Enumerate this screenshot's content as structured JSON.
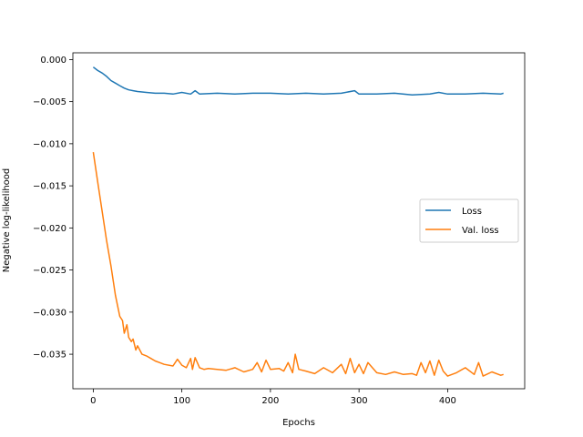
{
  "chart_data": {
    "type": "line",
    "title": "",
    "xlabel": "Epochs",
    "ylabel": "Negative log-likelihood",
    "xlim": [
      -23,
      487
    ],
    "ylim": [
      -0.0391,
      0.0008
    ],
    "xticks": [
      0,
      100,
      200,
      300,
      400
    ],
    "yticks": [
      0.0,
      -0.005,
      -0.01,
      -0.015,
      -0.02,
      -0.025,
      -0.03,
      -0.035
    ],
    "xtick_labels": [
      "0",
      "100",
      "200",
      "300",
      "400"
    ],
    "ytick_labels": [
      "0.000",
      "−0.005",
      "−0.010",
      "−0.015",
      "−0.020",
      "−0.025",
      "−0.030",
      "−0.035"
    ],
    "grid": false,
    "legend_position": "center-right",
    "series": [
      {
        "name": "Loss",
        "color": "#1f77b4",
        "x": [
          0,
          5,
          10,
          15,
          20,
          25,
          30,
          35,
          40,
          45,
          50,
          60,
          70,
          80,
          90,
          100,
          110,
          115,
          120,
          140,
          160,
          180,
          200,
          220,
          240,
          260,
          280,
          295,
          300,
          320,
          340,
          360,
          380,
          390,
          400,
          420,
          440,
          460,
          463
        ],
        "y": [
          -0.0009,
          -0.0013,
          -0.0016,
          -0.002,
          -0.0025,
          -0.0028,
          -0.0031,
          -0.0034,
          -0.0036,
          -0.0037,
          -0.0038,
          -0.0039,
          -0.004,
          -0.004,
          -0.0041,
          -0.0039,
          -0.0041,
          -0.0037,
          -0.0041,
          -0.004,
          -0.0041,
          -0.004,
          -0.004,
          -0.0041,
          -0.004,
          -0.0041,
          -0.004,
          -0.0037,
          -0.0041,
          -0.0041,
          -0.004,
          -0.0042,
          -0.0041,
          -0.0039,
          -0.0041,
          -0.0041,
          -0.004,
          -0.0041,
          -0.004
        ]
      },
      {
        "name": "Val. loss",
        "color": "#ff7f0e",
        "x": [
          0,
          5,
          10,
          15,
          20,
          25,
          30,
          33,
          35,
          38,
          40,
          43,
          45,
          48,
          50,
          55,
          60,
          65,
          70,
          75,
          80,
          90,
          95,
          100,
          105,
          110,
          112,
          115,
          120,
          125,
          130,
          140,
          150,
          160,
          170,
          180,
          185,
          190,
          195,
          200,
          210,
          215,
          220,
          225,
          228,
          232,
          240,
          250,
          260,
          270,
          280,
          285,
          290,
          295,
          300,
          305,
          310,
          320,
          330,
          340,
          350,
          360,
          365,
          370,
          375,
          380,
          385,
          390,
          395,
          400,
          410,
          420,
          430,
          435,
          440,
          450,
          460,
          463
        ],
        "y": [
          -0.011,
          -0.0145,
          -0.018,
          -0.0215,
          -0.0245,
          -0.028,
          -0.0305,
          -0.031,
          -0.0325,
          -0.0315,
          -0.033,
          -0.0335,
          -0.0332,
          -0.0345,
          -0.034,
          -0.035,
          -0.0352,
          -0.0355,
          -0.0358,
          -0.036,
          -0.0362,
          -0.0364,
          -0.0356,
          -0.0363,
          -0.0366,
          -0.0355,
          -0.0368,
          -0.0354,
          -0.0366,
          -0.0368,
          -0.0367,
          -0.0368,
          -0.0369,
          -0.0366,
          -0.0371,
          -0.0368,
          -0.036,
          -0.0371,
          -0.0357,
          -0.0368,
          -0.0367,
          -0.037,
          -0.036,
          -0.0372,
          -0.035,
          -0.0368,
          -0.037,
          -0.0373,
          -0.0366,
          -0.0372,
          -0.0362,
          -0.0373,
          -0.0355,
          -0.0372,
          -0.0362,
          -0.0373,
          -0.036,
          -0.0372,
          -0.0374,
          -0.0371,
          -0.0374,
          -0.0373,
          -0.0375,
          -0.036,
          -0.0372,
          -0.0358,
          -0.0375,
          -0.0357,
          -0.037,
          -0.0376,
          -0.0372,
          -0.0366,
          -0.0374,
          -0.036,
          -0.0376,
          -0.0371,
          -0.0375,
          -0.0374
        ]
      }
    ]
  }
}
